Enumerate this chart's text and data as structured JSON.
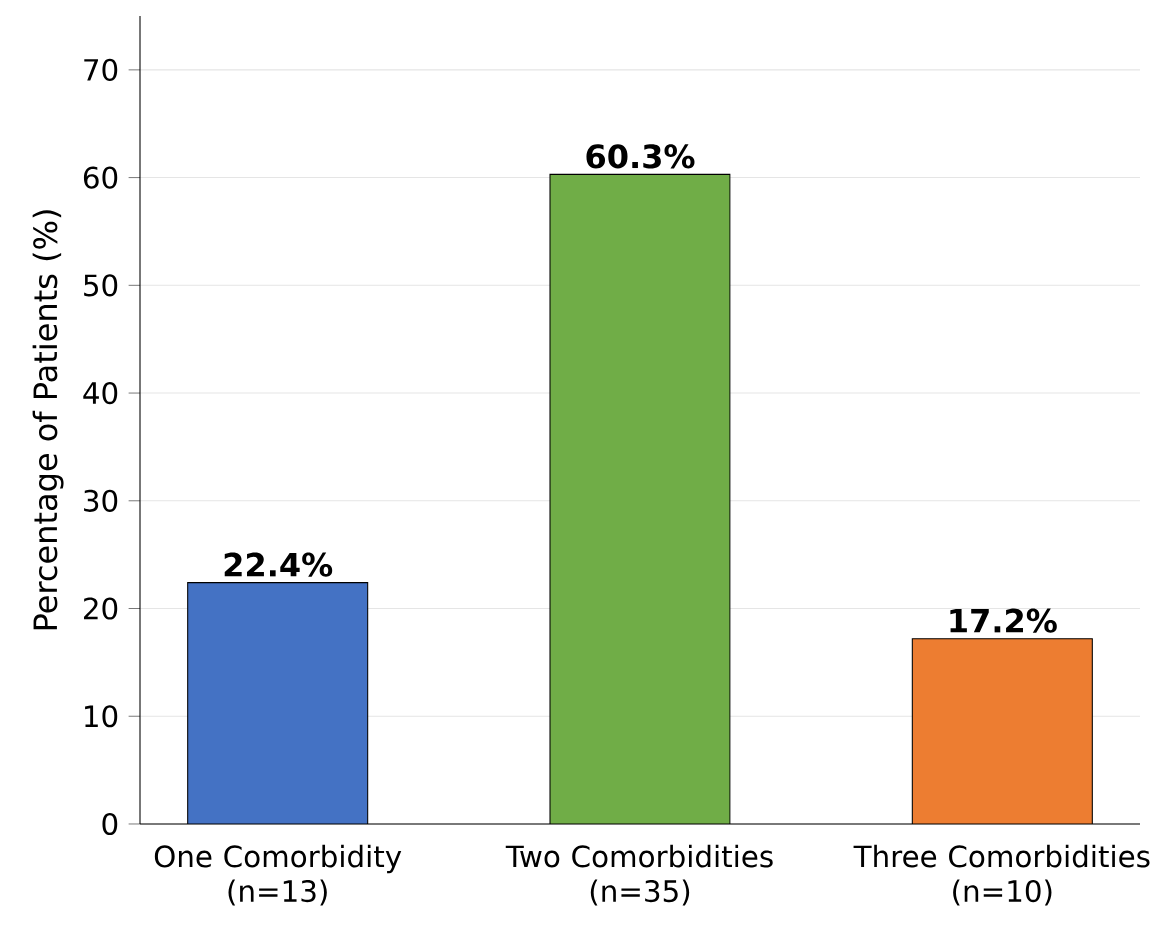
{
  "chart_data": {
    "type": "bar",
    "ylabel": "Percentage of Patients (%)",
    "categories": [
      "One Comorbidity (n=13)",
      "Two Comorbidities (n=35)",
      "Three Comorbidities (n=10)"
    ],
    "values": [
      22.4,
      60.3,
      17.2
    ],
    "colors": [
      "#4472c4",
      "#70ad47",
      "#ed7d31"
    ],
    "value_labels": [
      "22.4%",
      "60.3%",
      "17.2%"
    ],
    "ylim": [
      0,
      75
    ],
    "yticks": [
      0,
      10,
      20,
      30,
      40,
      50,
      60,
      70
    ],
    "grid": "y"
  }
}
